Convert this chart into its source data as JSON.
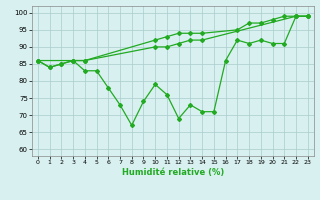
{
  "line1_x": [
    0,
    1,
    2,
    3,
    4,
    10,
    11,
    12,
    13,
    14,
    17,
    18,
    19,
    20,
    21,
    22,
    23
  ],
  "line1_y": [
    86,
    84,
    85,
    86,
    86,
    92,
    93,
    94,
    94,
    94,
    95,
    97,
    97,
    98,
    99,
    99,
    99
  ],
  "line2_x": [
    0,
    3,
    4,
    10,
    11,
    12,
    13,
    14,
    22,
    23
  ],
  "line2_y": [
    86,
    86,
    86,
    90,
    90,
    91,
    92,
    92,
    99,
    99
  ],
  "line3_x": [
    0,
    1,
    2,
    3,
    4,
    5,
    6,
    7,
    8,
    9,
    10,
    11,
    12,
    13,
    14,
    15,
    16,
    17,
    18,
    19,
    20,
    21,
    22,
    23
  ],
  "line3_y": [
    86,
    84,
    85,
    86,
    83,
    83,
    78,
    73,
    67,
    74,
    79,
    76,
    69,
    73,
    71,
    71,
    86,
    92,
    91,
    92,
    91,
    91,
    99,
    99
  ],
  "line_color": "#22aa22",
  "bg_color": "#d8f0f0",
  "grid_color": "#aacccc",
  "xlabel": "Humidité relative (%)",
  "xlim": [
    -0.5,
    23.5
  ],
  "ylim": [
    58,
    102
  ],
  "yticks": [
    60,
    65,
    70,
    75,
    80,
    85,
    90,
    95,
    100
  ],
  "xticks": [
    0,
    1,
    2,
    3,
    4,
    5,
    6,
    7,
    8,
    9,
    10,
    11,
    12,
    13,
    14,
    15,
    16,
    17,
    18,
    19,
    20,
    21,
    22,
    23
  ]
}
